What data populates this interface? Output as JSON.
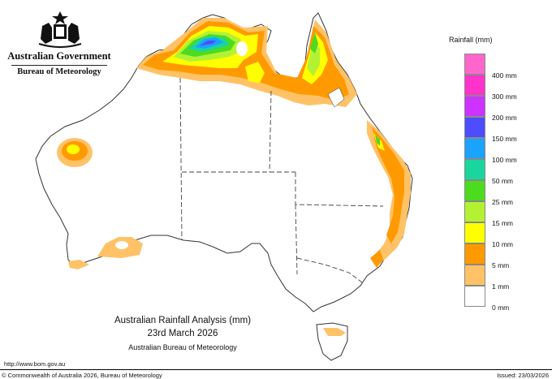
{
  "header": {
    "government": "Australian Government",
    "bureau": "Bureau of Meteorology"
  },
  "legend": {
    "title": "Rainfall (mm)",
    "items": [
      {
        "label": "400 mm",
        "color": "#ff66cc"
      },
      {
        "label": "300 mm",
        "color": "#ff33cc"
      },
      {
        "label": "200 mm",
        "color": "#cc33ff"
      },
      {
        "label": "150 mm",
        "color": "#4d4dff"
      },
      {
        "label": "100 mm",
        "color": "#1aa3ff"
      },
      {
        "label": "50 mm",
        "color": "#1ad69e"
      },
      {
        "label": "25 mm",
        "color": "#4ddb1f"
      },
      {
        "label": "15 mm",
        "color": "#b3f233"
      },
      {
        "label": "10 mm",
        "color": "#ffff00"
      },
      {
        "label": "5 mm",
        "color": "#ff9900"
      },
      {
        "label": "1 mm",
        "color": "#ffc266"
      },
      {
        "label": "0 mm",
        "color": "#ffffff"
      }
    ]
  },
  "caption": {
    "title": "Australian Rainfall Analysis (mm)",
    "date": "23rd March 2026",
    "source": "Australian Bureau of Meteorology"
  },
  "footer": {
    "url": "http://www.bom.gov.au",
    "copyright": "© Commonwealth of Australia 2026, Bureau of Meteorology",
    "issued": "Issued: 23/03/2026"
  },
  "colors": {
    "outline": "#333333",
    "border": "#444444",
    "land": "#ffffff"
  }
}
